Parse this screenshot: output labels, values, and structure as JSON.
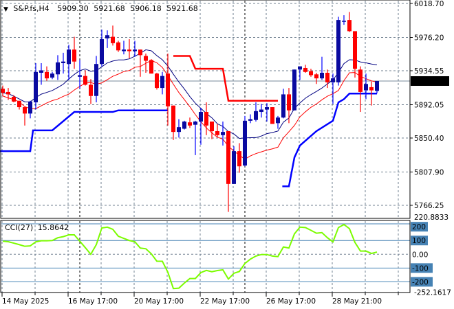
{
  "header": {
    "arrow": "▼",
    "symbol": "S&P.fs,H4",
    "open": "5909.30",
    "high": "5921.68",
    "low": "5906.18",
    "close": "5921.68"
  },
  "colors": {
    "bull_body": "#0a0aa0",
    "bull_wick": "#0000ff",
    "bear": "#ff0000",
    "ma_close": "#000080",
    "ma_low": "#ff0000",
    "stop_blue": "#0000ff",
    "stop_red": "#ff0000",
    "cci": "#7cfc00",
    "cci_levels": "#4682b4",
    "grid": "#708090",
    "price_tag_bg": "#000000"
  },
  "chart_data": [
    {
      "type": "candlestick",
      "title": "S&P.fs,H4",
      "price_ticks": [
        "6018.70",
        "5976.20",
        "5934.55",
        "5892.05",
        "5850.40",
        "5807.90",
        "5766.25"
      ],
      "current_price": "5921.68",
      "ylim": [
        5766.25,
        6018.7
      ],
      "x_labels": [
        "14 May 2025",
        "16 May 17:00",
        "20 May 17:00",
        "22 May 17:00",
        "26 May 17:00",
        "28 May 21:00"
      ],
      "ohlc": [
        [
          5912,
          5916,
          5903,
          5907
        ],
        [
          5908,
          5913,
          5898,
          5905
        ],
        [
          5902,
          5904,
          5895,
          5896
        ],
        [
          5897,
          5897,
          5886,
          5889
        ],
        [
          5889,
          5889,
          5866,
          5881
        ],
        [
          5881,
          5897,
          5875,
          5896
        ],
        [
          5895,
          5944,
          5886,
          5933
        ],
        [
          5932,
          5944,
          5917,
          5935
        ],
        [
          5933,
          5940,
          5922,
          5925
        ],
        [
          5926,
          5933,
          5924,
          5931
        ],
        [
          5930,
          5954,
          5923,
          5945
        ],
        [
          5944,
          5957,
          5931,
          5946
        ],
        [
          5943,
          5967,
          5923,
          5961
        ],
        [
          5961,
          5977,
          5937,
          5946
        ],
        [
          5927,
          5948,
          5912,
          5929
        ],
        [
          5928,
          5935,
          5916,
          5917
        ],
        [
          5917,
          5924,
          5893,
          5903
        ],
        [
          5903,
          5953,
          5895,
          5943
        ],
        [
          5943,
          5986,
          5940,
          5974
        ],
        [
          5975,
          5985,
          5963,
          5979
        ],
        [
          5977,
          5991,
          5966,
          5969
        ],
        [
          5970,
          5972,
          5958,
          5960
        ],
        [
          5959,
          5972,
          5955,
          5961
        ],
        [
          5961,
          5974,
          5950,
          5959
        ],
        [
          5959,
          5972,
          5952,
          5961
        ],
        [
          5961,
          5961,
          5927,
          5954
        ],
        [
          5953,
          5956,
          5932,
          5947
        ],
        [
          5948,
          5949,
          5931,
          5931
        ],
        [
          5931,
          5932,
          5911,
          5913
        ],
        [
          5913,
          5933,
          5905,
          5928
        ],
        [
          5931,
          5956,
          5866,
          5890
        ],
        [
          5891,
          5891,
          5848,
          5858
        ],
        [
          5858,
          5874,
          5851,
          5864
        ],
        [
          5862,
          5872,
          5861,
          5871
        ],
        [
          5870,
          5876,
          5863,
          5866
        ],
        [
          5867,
          5872,
          5829,
          5871
        ],
        [
          5871,
          5888,
          5842,
          5883
        ],
        [
          5883,
          5895,
          5854,
          5866
        ],
        [
          5871,
          5871,
          5849,
          5859
        ],
        [
          5859,
          5868,
          5852,
          5854
        ],
        [
          5854,
          5871,
          5841,
          5858
        ],
        [
          5859,
          5859,
          5758,
          5793
        ],
        [
          5793,
          5840,
          5793,
          5834
        ],
        [
          5834,
          5844,
          5807,
          5815
        ],
        [
          5816,
          5878,
          5815,
          5872
        ],
        [
          5872,
          5880,
          5869,
          5874
        ],
        [
          5873,
          5895,
          5871,
          5884
        ],
        [
          5883,
          5893,
          5876,
          5886
        ],
        [
          5886,
          5894,
          5871,
          5889
        ],
        [
          5889,
          5889,
          5868,
          5868
        ],
        [
          5869,
          5878,
          5862,
          5876
        ],
        [
          5876,
          5912,
          5875,
          5905
        ],
        [
          5905,
          5913,
          5869,
          5885
        ],
        [
          5885,
          5936,
          5885,
          5936
        ],
        [
          5936,
          5940,
          5923,
          5940
        ],
        [
          5938,
          5942,
          5932,
          5933
        ],
        [
          5934,
          5937,
          5927,
          5929
        ],
        [
          5930,
          5932,
          5918,
          5925
        ],
        [
          5925,
          5952,
          5923,
          5932
        ],
        [
          5932,
          5936,
          5913,
          5920
        ],
        [
          5920,
          5931,
          5893,
          5925
        ],
        [
          5920,
          6002,
          5916,
          5998
        ],
        [
          5997,
          6004,
          5992,
          5997
        ],
        [
          5998,
          6008,
          5983,
          5984
        ],
        [
          5984,
          5984,
          5926,
          5937
        ],
        [
          5936,
          5940,
          5883,
          5908
        ],
        [
          5910,
          5931,
          5899,
          5918
        ],
        [
          5914,
          5921,
          5891,
          5910
        ],
        [
          5909.3,
          5921.68,
          5906.18,
          5921.68
        ]
      ],
      "stop_support": [
        [
          [
            -0.5,
            5834
          ],
          [
            5,
            5834
          ],
          [
            5.5,
            5860
          ],
          [
            9,
            5860
          ],
          [
            13,
            5883
          ],
          [
            20,
            5883
          ],
          [
            21,
            5885
          ],
          [
            30,
            5885
          ]
        ],
        [
          [
            50.8,
            5790
          ],
          [
            52,
            5790
          ],
          [
            53,
            5826
          ],
          [
            54,
            5841
          ],
          [
            57,
            5859
          ],
          [
            60,
            5872
          ],
          [
            61,
            5895
          ],
          [
            62,
            5899
          ],
          [
            63,
            5906
          ],
          [
            68,
            5906
          ]
        ]
      ],
      "stop_resistance": [
        [
          31,
          5953
        ],
        [
          34,
          5953
        ],
        [
          35,
          5937
        ],
        [
          40,
          5937
        ],
        [
          41,
          5897
        ],
        [
          50,
          5897
        ]
      ]
    },
    {
      "type": "line",
      "title": "CCI(27)",
      "value_label": "15.8642",
      "ylim": [
        -252.1617,
        220.8833
      ],
      "range_labels": [
        "220.8833",
        "-252.1617"
      ],
      "levels": [
        "200",
        "100",
        "0.00",
        "-100",
        "-200"
      ],
      "values": [
        95,
        91,
        81,
        70,
        58,
        61,
        90,
        98,
        98,
        100,
        120,
        128,
        141,
        141,
        95,
        48,
        0,
        70,
        191,
        197,
        181,
        131,
        115,
        100,
        91,
        45,
        40,
        3,
        -50,
        -51,
        -130,
        -249,
        -246,
        -209,
        -176,
        -176,
        -133,
        -117,
        -127,
        -118,
        -113,
        -180,
        -138,
        -125,
        -67,
        -35,
        -13,
        -2,
        -2,
        -13,
        -17,
        53,
        45,
        148,
        197,
        194,
        174,
        153,
        157,
        120,
        90,
        194,
        216,
        186,
        86,
        23,
        23,
        6,
        15.86
      ]
    }
  ]
}
